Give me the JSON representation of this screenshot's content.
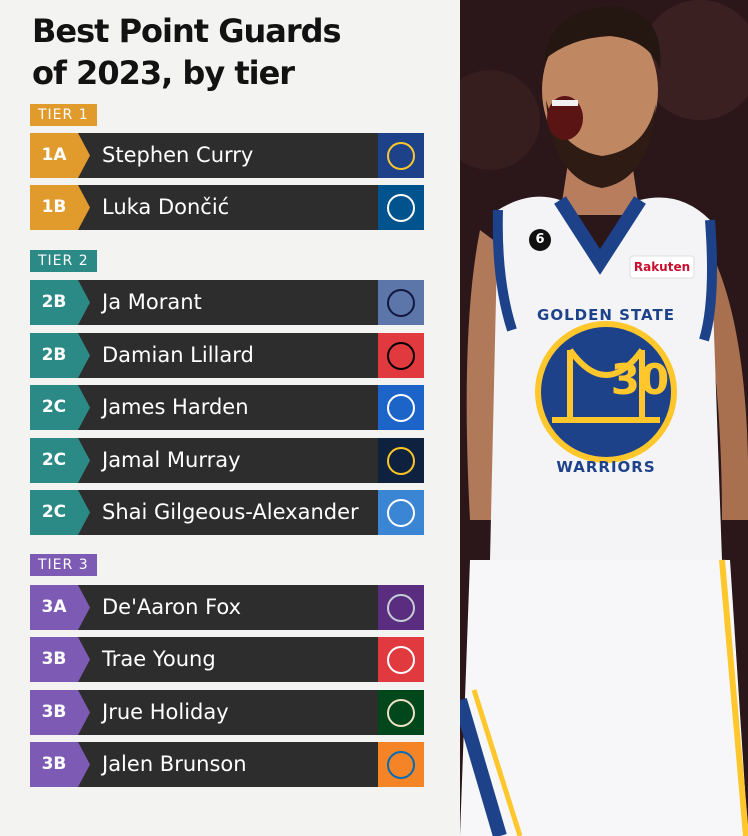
{
  "title_line1": "Best Point Guards",
  "title_line2": "of 2023, by tier",
  "colors": {
    "tier1": "#e19a2c",
    "tier2": "#2c8a86",
    "tier3": "#7d5bb5",
    "row_bg": "#2d2d2d"
  },
  "tiers": [
    {
      "label": "TIER 1"
    },
    {
      "label": "TIER 2"
    },
    {
      "label": "TIER 3"
    }
  ],
  "players": [
    {
      "rank": "1A",
      "name": "Stephen Curry",
      "team_icon": "warriors-logo-icon",
      "logo_bg": "#1d428a",
      "logo_fg": "#ffc72c"
    },
    {
      "rank": "1B",
      "name": "Luka Dončić",
      "team_icon": "mavericks-logo-icon",
      "logo_bg": "#00538c",
      "logo_fg": "#ffffff"
    },
    {
      "rank": "2B",
      "name": "Ja Morant",
      "team_icon": "grizzlies-logo-icon",
      "logo_bg": "#5d76a9",
      "logo_fg": "#12173f"
    },
    {
      "rank": "2B",
      "name": "Damian Lillard",
      "team_icon": "trail-blazers-logo-icon",
      "logo_bg": "#e03a3e",
      "logo_fg": "#000000"
    },
    {
      "rank": "2C",
      "name": "James Harden",
      "team_icon": "76ers-logo-icon",
      "logo_bg": "#1d64c9",
      "logo_fg": "#ffffff"
    },
    {
      "rank": "2C",
      "name": "Jamal Murray",
      "team_icon": "nuggets-logo-icon",
      "logo_bg": "#0e2240",
      "logo_fg": "#fec524"
    },
    {
      "rank": "2C",
      "name": "Shai Gilgeous-Alexander",
      "team_icon": "thunder-logo-icon",
      "logo_bg": "#3a85d4",
      "logo_fg": "#ffffff"
    },
    {
      "rank": "3A",
      "name": "De'Aaron Fox",
      "team_icon": "kings-logo-icon",
      "logo_bg": "#5a2d81",
      "logo_fg": "#c4ced4"
    },
    {
      "rank": "3B",
      "name": "Trae Young",
      "team_icon": "hawks-logo-icon",
      "logo_bg": "#e03a3e",
      "logo_fg": "#ffffff"
    },
    {
      "rank": "3B",
      "name": "Jrue Holiday",
      "team_icon": "bucks-logo-icon",
      "logo_bg": "#00471b",
      "logo_fg": "#eee1c6"
    },
    {
      "rank": "3B",
      "name": "Jalen Brunson",
      "team_icon": "knicks-logo-icon",
      "logo_bg": "#f58426",
      "logo_fg": "#006bb6"
    }
  ],
  "photo": {
    "jersey_number_chest": "30",
    "jersey_text_top": "GOLDEN STATE",
    "jersey_text_bottom": "WARRIORS",
    "patch_sponsor": "Rakuten",
    "patch_number": "6"
  }
}
